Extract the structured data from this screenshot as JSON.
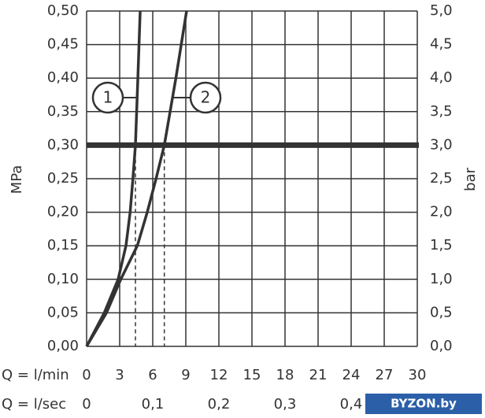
{
  "chart_data": {
    "type": "line",
    "y_label": "MPa",
    "y2_label": "bar",
    "x_label": "Q = l/min",
    "x2_label": "Q = l/sec",
    "watermark": "BYZON.by",
    "xlim": [
      0,
      30
    ],
    "xticks": [
      0,
      3,
      6,
      9,
      12,
      15,
      18,
      21,
      24,
      27,
      30
    ],
    "x2lim": [
      0,
      0.5
    ],
    "x2ticks": [
      0,
      {
        "value": 0.1,
        "label": "0,1"
      },
      {
        "value": 0.2,
        "label": "0,2"
      },
      {
        "value": 0.3,
        "label": "0,3"
      },
      {
        "value": 0.4,
        "label": "0,4"
      }
    ],
    "ylim": [
      0,
      0.5
    ],
    "yticks": [
      {
        "value": 0,
        "label": "0,00"
      },
      {
        "value": 0.05,
        "label": "0,05"
      },
      {
        "value": 0.1,
        "label": "0,10"
      },
      {
        "value": 0.15,
        "label": "0,15"
      },
      {
        "value": 0.2,
        "label": "0,20"
      },
      {
        "value": 0.25,
        "label": "0,25"
      },
      {
        "value": 0.3,
        "label": "0,30"
      },
      {
        "value": 0.35,
        "label": "0,35"
      },
      {
        "value": 0.4,
        "label": "0,40"
      },
      {
        "value": 0.45,
        "label": "0,45"
      },
      {
        "value": 0.5,
        "label": "0,50"
      }
    ],
    "y2lim": [
      0,
      5
    ],
    "y2ticks": [
      {
        "value": 0,
        "label": "0,0"
      },
      {
        "value": 0.5,
        "label": "0,5"
      },
      {
        "value": 1,
        "label": "1,0"
      },
      {
        "value": 1.5,
        "label": "1,5"
      },
      {
        "value": 2,
        "label": "2,0"
      },
      {
        "value": 2.5,
        "label": "2,5"
      },
      {
        "value": 3,
        "label": "3,0"
      },
      {
        "value": 3.5,
        "label": "3,5"
      },
      {
        "value": 4,
        "label": "4,0"
      },
      {
        "value": 4.5,
        "label": "4,5"
      },
      {
        "value": 5,
        "label": "5,0"
      }
    ],
    "grid": true,
    "reference_line": 0.3,
    "series": [
      {
        "name": "1",
        "color": "#333333",
        "x": [
          0,
          1.6,
          2.86,
          3.57,
          3.95,
          4.2,
          4.43,
          4.65,
          4.86
        ],
        "values": [
          0,
          0.05,
          0.1,
          0.15,
          0.2,
          0.25,
          0.3,
          0.4,
          0.5
        ]
      },
      {
        "name": "2",
        "color": "#333333",
        "x": [
          0,
          1.8,
          3.1,
          4.6,
          5.5,
          6.3,
          7.05,
          8.1,
          9.07
        ],
        "values": [
          0,
          0.05,
          0.1,
          0.15,
          0.2,
          0.25,
          0.3,
          0.4,
          0.5
        ]
      }
    ]
  }
}
